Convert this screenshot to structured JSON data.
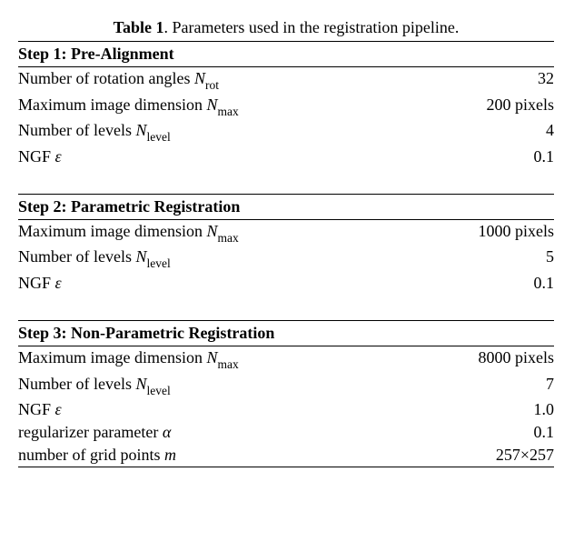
{
  "caption_label": "Table 1",
  "caption_text": ". Parameters used in the registration pipeline.",
  "sections": [
    {
      "title": "Step 1: Pre-Alignment",
      "rows": [
        {
          "label_pre": "Number of rotation angles ",
          "sym": "N",
          "sub": "rot",
          "label_post": "",
          "value": "32"
        },
        {
          "label_pre": "Maximum image dimension ",
          "sym": "N",
          "sub": "max",
          "label_post": "",
          "value": "200 pixels"
        },
        {
          "label_pre": "Number of levels ",
          "sym": "N",
          "sub": "level",
          "label_post": "",
          "value": "4"
        },
        {
          "label_pre": "NGF ",
          "sym": "ε",
          "sub": "",
          "label_post": "",
          "value": "0.1"
        }
      ]
    },
    {
      "title": "Step 2: Parametric Registration",
      "rows": [
        {
          "label_pre": "Maximum image dimension ",
          "sym": "N",
          "sub": "max",
          "label_post": "",
          "value": "1000 pixels"
        },
        {
          "label_pre": "Number of levels ",
          "sym": "N",
          "sub": "level",
          "label_post": "",
          "value": "5"
        },
        {
          "label_pre": "NGF ",
          "sym": "ε",
          "sub": "",
          "label_post": "",
          "value": "0.1"
        }
      ]
    },
    {
      "title": "Step 3: Non-Parametric Registration",
      "rows": [
        {
          "label_pre": "Maximum image dimension ",
          "sym": "N",
          "sub": "max",
          "label_post": "",
          "value": "8000 pixels"
        },
        {
          "label_pre": "Number of levels ",
          "sym": "N",
          "sub": "level",
          "label_post": "",
          "value": "7"
        },
        {
          "label_pre": "NGF ",
          "sym": "ε",
          "sub": "",
          "label_post": "",
          "value": "1.0"
        },
        {
          "label_pre": "regularizer parameter ",
          "sym": "α",
          "sub": "",
          "label_post": "",
          "value": "0.1"
        },
        {
          "label_pre": "number of grid points ",
          "sym": "m",
          "sub": "",
          "label_post": "",
          "value": "257×257"
        }
      ]
    }
  ]
}
